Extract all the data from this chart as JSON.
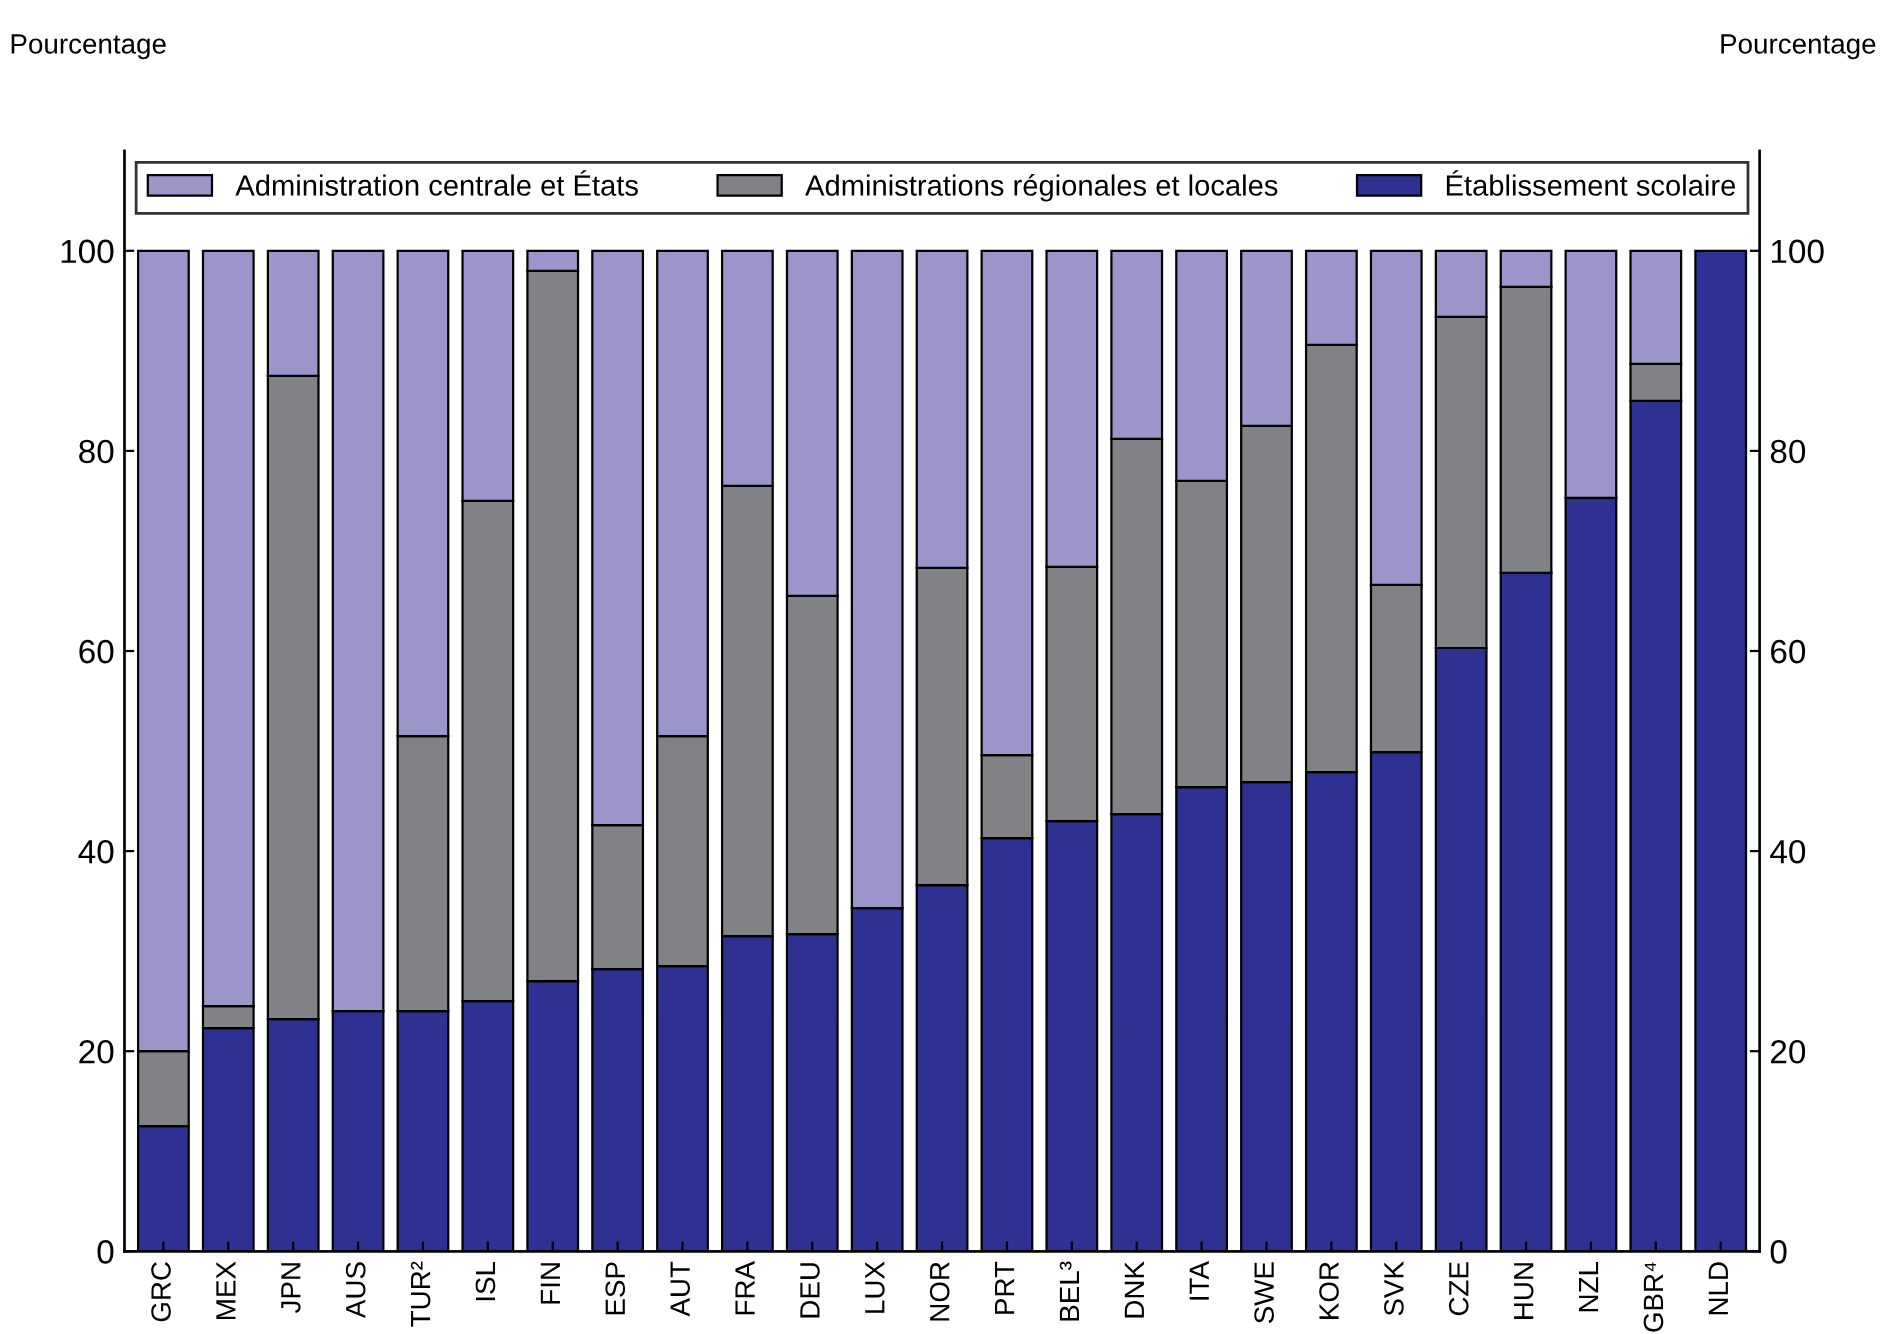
{
  "chart_data": {
    "type": "bar",
    "stacked": true,
    "ylabel": "Pourcentage",
    "y2label": "Pourcentage",
    "categories": [
      "GRC",
      "MEX",
      "JPN",
      "AUS",
      "TUR²",
      "ISL",
      "FIN",
      "ESP",
      "AUT",
      "FRA",
      "DEU",
      "LUX",
      "NOR",
      "PRT",
      "BEL³",
      "DNK",
      "ITA",
      "SWE",
      "KOR",
      "SVK",
      "CZE",
      "HUN",
      "NZL",
      "GBR⁴",
      "NLD"
    ],
    "series": [
      {
        "name": "Établissement scolaire",
        "color": "#2e3192",
        "values": [
          12.5,
          22.3,
          23.2,
          24,
          24,
          25,
          27,
          28.2,
          28.5,
          31.5,
          31.7,
          34.3,
          36.6,
          41.3,
          43,
          43.7,
          46.4,
          46.9,
          47.9,
          49.9,
          60.3,
          67.8,
          75.3,
          85,
          100
        ]
      },
      {
        "name": "Administrations régionales et locales",
        "color": "#808285",
        "values": [
          7.5,
          2.2,
          64.3,
          0,
          27.5,
          50,
          71,
          14.4,
          23,
          45,
          33.8,
          0,
          31.7,
          8.3,
          25.4,
          37.5,
          30.6,
          35.6,
          42.7,
          16.7,
          33.1,
          28.6,
          0,
          3.7,
          0
        ]
      },
      {
        "name": "Administration centrale et États",
        "color": "#9b95c9",
        "values": [
          80,
          75.5,
          12.5,
          76,
          48.5,
          25,
          2,
          57.4,
          48.5,
          23.5,
          34.5,
          65.7,
          31.7,
          50.4,
          31.6,
          18.8,
          23,
          17.5,
          9.4,
          33.4,
          6.6,
          3.6,
          24.7,
          11.3,
          0
        ]
      }
    ],
    "ylim": [
      0,
      110
    ],
    "yticks": [
      0,
      20,
      40,
      60,
      80,
      100
    ],
    "y2lim": [
      0,
      110
    ],
    "y2ticks": [
      0,
      20,
      40,
      60,
      80,
      100
    ],
    "legend": "top",
    "grid": false
  }
}
